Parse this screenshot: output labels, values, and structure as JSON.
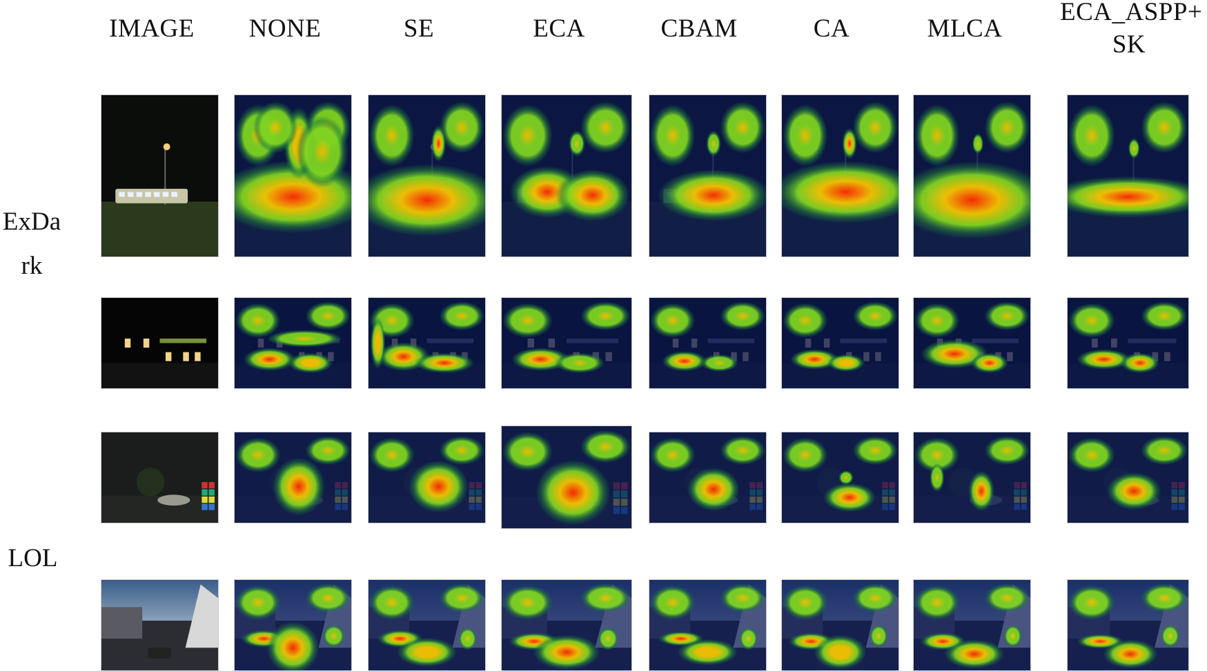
{
  "figure": {
    "columns": [
      "IMAGE",
      "NONE",
      "SE",
      "ECA",
      "CBAM",
      "CA",
      "MLCA",
      "ECA_ASPP+\nSK"
    ],
    "datasets": [
      {
        "label": "ExDa\nrk",
        "rows": [
          0,
          1
        ]
      },
      {
        "label": "LOL",
        "rows": [
          2,
          3
        ]
      }
    ],
    "rows": [
      {
        "scene": "night street with bus under a street lamp"
      },
      {
        "scene": "night house facade with lit windows"
      },
      {
        "scene": "dark indoor table with flowers and teapot"
      },
      {
        "scene": "dusk town street with cars and houses"
      }
    ],
    "heatmap_colors": {
      "low": "#0d1b5c",
      "mid_low": "#1f7a3a",
      "mid": "#7ed321",
      "mid_high": "#f5c400",
      "high": "#ff2a00"
    }
  }
}
